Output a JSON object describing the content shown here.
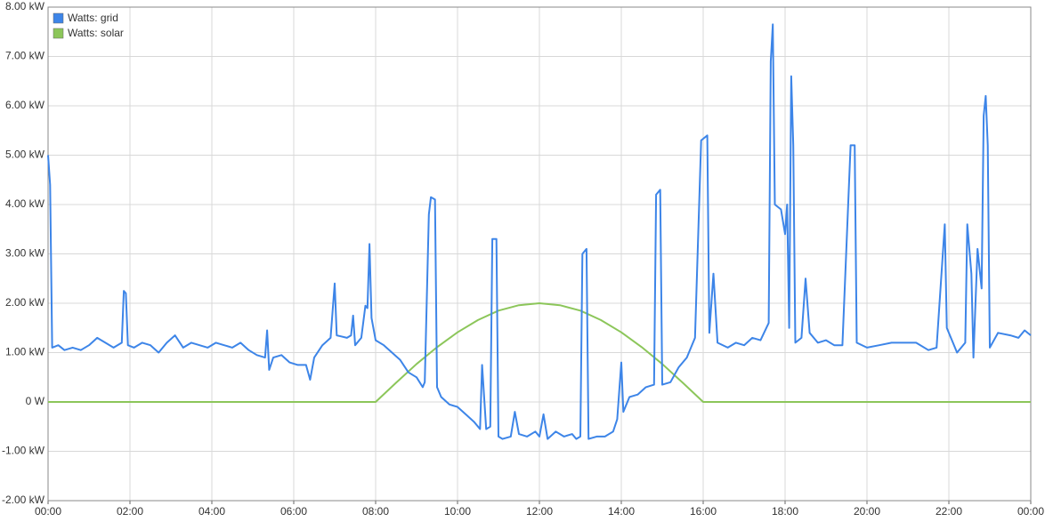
{
  "chart_data": {
    "type": "line",
    "series": [
      {
        "name": "Watts: grid",
        "color": "#3d85e8",
        "x": [
          0,
          0.05,
          0.1,
          0.25,
          0.4,
          0.6,
          0.8,
          1.0,
          1.2,
          1.4,
          1.6,
          1.8,
          1.85,
          1.9,
          1.95,
          2.1,
          2.3,
          2.5,
          2.7,
          2.9,
          3.1,
          3.3,
          3.5,
          3.7,
          3.9,
          4.1,
          4.3,
          4.5,
          4.7,
          4.9,
          5.1,
          5.3,
          5.35,
          5.4,
          5.5,
          5.7,
          5.9,
          6.1,
          6.3,
          6.4,
          6.5,
          6.7,
          6.9,
          7.0,
          7.05,
          7.3,
          7.4,
          7.45,
          7.5,
          7.65,
          7.75,
          7.8,
          7.85,
          7.9,
          8.0,
          8.2,
          8.4,
          8.6,
          8.8,
          9.0,
          9.15,
          9.2,
          9.3,
          9.35,
          9.45,
          9.5,
          9.6,
          9.8,
          10.0,
          10.2,
          10.4,
          10.55,
          10.6,
          10.7,
          10.8,
          10.85,
          10.95,
          11.0,
          11.1,
          11.3,
          11.4,
          11.5,
          11.7,
          11.9,
          12.0,
          12.1,
          12.2,
          12.4,
          12.6,
          12.8,
          12.9,
          13.0,
          13.05,
          13.15,
          13.2,
          13.4,
          13.6,
          13.8,
          13.9,
          14.0,
          14.05,
          14.2,
          14.4,
          14.6,
          14.8,
          14.85,
          14.95,
          15.0,
          15.2,
          15.4,
          15.6,
          15.8,
          15.95,
          16.1,
          16.15,
          16.25,
          16.35,
          16.6,
          16.8,
          17.0,
          17.2,
          17.4,
          17.6,
          17.65,
          17.7,
          17.75,
          17.9,
          18.0,
          18.05,
          18.1,
          18.15,
          18.2,
          18.25,
          18.4,
          18.5,
          18.6,
          18.8,
          19.0,
          19.2,
          19.4,
          19.6,
          19.7,
          19.75,
          20.0,
          20.3,
          20.6,
          20.9,
          21.2,
          21.5,
          21.7,
          21.9,
          21.95,
          22.1,
          22.2,
          22.4,
          22.45,
          22.55,
          22.6,
          22.7,
          22.8,
          22.85,
          22.9,
          22.95,
          23.0,
          23.2,
          23.5,
          23.7,
          23.85,
          24.0
        ],
        "values": [
          5.0,
          4.4,
          1.1,
          1.15,
          1.05,
          1.1,
          1.05,
          1.15,
          1.3,
          1.2,
          1.1,
          1.2,
          2.25,
          2.2,
          1.15,
          1.1,
          1.2,
          1.15,
          1.0,
          1.2,
          1.35,
          1.1,
          1.2,
          1.15,
          1.1,
          1.2,
          1.15,
          1.1,
          1.2,
          1.05,
          0.95,
          0.9,
          1.45,
          0.65,
          0.9,
          0.95,
          0.8,
          0.75,
          0.75,
          0.45,
          0.9,
          1.15,
          1.3,
          2.4,
          1.35,
          1.3,
          1.35,
          1.75,
          1.15,
          1.3,
          1.95,
          1.9,
          3.2,
          1.7,
          1.25,
          1.15,
          1.0,
          0.85,
          0.6,
          0.5,
          0.3,
          0.4,
          3.8,
          4.15,
          4.1,
          0.3,
          0.1,
          -0.05,
          -0.1,
          -0.25,
          -0.4,
          -0.55,
          0.75,
          -0.55,
          -0.5,
          3.3,
          3.3,
          -0.7,
          -0.75,
          -0.7,
          -0.2,
          -0.65,
          -0.7,
          -0.6,
          -0.7,
          -0.25,
          -0.75,
          -0.6,
          -0.7,
          -0.65,
          -0.75,
          -0.7,
          3.0,
          3.1,
          -0.75,
          -0.7,
          -0.7,
          -0.6,
          -0.35,
          0.8,
          -0.2,
          0.1,
          0.15,
          0.3,
          0.35,
          4.2,
          4.3,
          0.35,
          0.4,
          0.7,
          0.9,
          1.3,
          5.3,
          5.4,
          1.4,
          2.6,
          1.2,
          1.1,
          1.2,
          1.15,
          1.3,
          1.25,
          1.6,
          6.9,
          7.65,
          4.0,
          3.9,
          3.4,
          4.0,
          1.5,
          6.6,
          5.2,
          1.2,
          1.3,
          2.5,
          1.4,
          1.2,
          1.25,
          1.15,
          1.15,
          5.2,
          5.2,
          1.2,
          1.1,
          1.15,
          1.2,
          1.2,
          1.2,
          1.05,
          1.1,
          3.6,
          1.5,
          1.2,
          1.0,
          1.2,
          3.6,
          2.6,
          0.9,
          3.1,
          2.3,
          5.8,
          6.2,
          5.2,
          1.1,
          1.4,
          1.35,
          1.3,
          1.45,
          1.35
        ]
      },
      {
        "name": "Watts: solar",
        "color": "#8cc65a",
        "x": [
          0,
          8,
          8.5,
          9,
          9.5,
          10,
          10.5,
          11,
          11.5,
          12,
          12.5,
          13,
          13.5,
          14,
          14.5,
          15,
          15.5,
          16,
          24
        ],
        "values": [
          0,
          0,
          0.39,
          0.77,
          1.11,
          1.41,
          1.66,
          1.85,
          1.96,
          2.0,
          1.96,
          1.85,
          1.66,
          1.41,
          1.11,
          0.77,
          0.39,
          0,
          0
        ]
      }
    ],
    "xlim": [
      0,
      24
    ],
    "xticks": [
      {
        "value": 0,
        "label": "00:00"
      },
      {
        "value": 2,
        "label": "02:00"
      },
      {
        "value": 4,
        "label": "04:00"
      },
      {
        "value": 6,
        "label": "06:00"
      },
      {
        "value": 8,
        "label": "08:00"
      },
      {
        "value": 10,
        "label": "10:00"
      },
      {
        "value": 12,
        "label": "12:00"
      },
      {
        "value": 14,
        "label": "14:00"
      },
      {
        "value": 16,
        "label": "16:00"
      },
      {
        "value": 18,
        "label": "18:00"
      },
      {
        "value": 20,
        "label": "20:00"
      },
      {
        "value": 22,
        "label": "22:00"
      },
      {
        "value": 24,
        "label": "00:00"
      }
    ],
    "ylim": [
      -2,
      8
    ],
    "yticks": [
      {
        "value": -2,
        "label": "-2.00 kW"
      },
      {
        "value": -1,
        "label": "-1.00 kW"
      },
      {
        "value": 0,
        "label": "0 W"
      },
      {
        "value": 1,
        "label": "1.00 kW"
      },
      {
        "value": 2,
        "label": "2.00 kW"
      },
      {
        "value": 3,
        "label": "3.00 kW"
      },
      {
        "value": 4,
        "label": "4.00 kW"
      },
      {
        "value": 5,
        "label": "5.00 kW"
      },
      {
        "value": 6,
        "label": "6.00 kW"
      },
      {
        "value": 7,
        "label": "7.00 kW"
      },
      {
        "value": 8,
        "label": "8.00 kW"
      }
    ],
    "grid": true,
    "legend": "top-left"
  }
}
